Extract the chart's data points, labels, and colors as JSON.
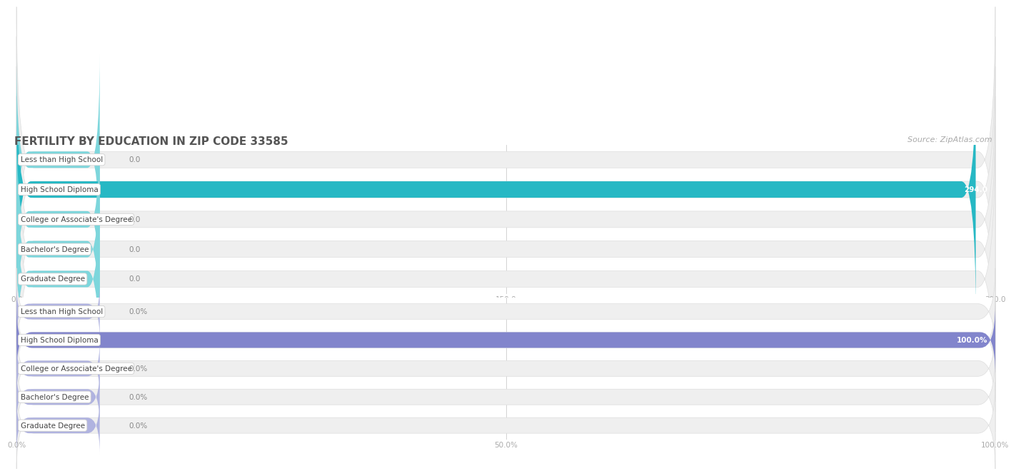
{
  "title": "FERTILITY BY EDUCATION IN ZIP CODE 33585",
  "source_text": "Source: ZipAtlas.com",
  "categories": [
    "Less than High School",
    "High School Diploma",
    "College or Associate's Degree",
    "Bachelor's Degree",
    "Graduate Degree"
  ],
  "values_count": [
    0.0,
    294.0,
    0.0,
    0.0,
    0.0
  ],
  "values_pct": [
    0.0,
    100.0,
    0.0,
    0.0,
    0.0
  ],
  "xlim_count": [
    0.0,
    300.0
  ],
  "xlim_pct": [
    0.0,
    100.0
  ],
  "xticks_count": [
    0.0,
    150.0,
    300.0
  ],
  "xticks_pct": [
    0.0,
    50.0,
    100.0
  ],
  "bar_color_count_full": "#26b8c4",
  "bar_color_count_zero": "#7dd6dc",
  "bar_color_pct_full": "#8285cc",
  "bar_color_pct_zero": "#b0b3e0",
  "row_bg_color": "#efefef",
  "row_border_color": "#dedede",
  "label_bg": "#ffffff",
  "label_border": "#d0d0d0",
  "background_color": "#ffffff",
  "title_color": "#555555",
  "source_color": "#aaaaaa",
  "zero_val_color": "#888888",
  "nonzero_val_color": "#ffffff",
  "grid_color": "#cccccc",
  "tick_label_color": "#aaaaaa",
  "title_fontsize": 11,
  "source_fontsize": 8,
  "cat_label_fontsize": 7.5,
  "val_fontsize": 7.5,
  "tick_fontsize": 7.5
}
